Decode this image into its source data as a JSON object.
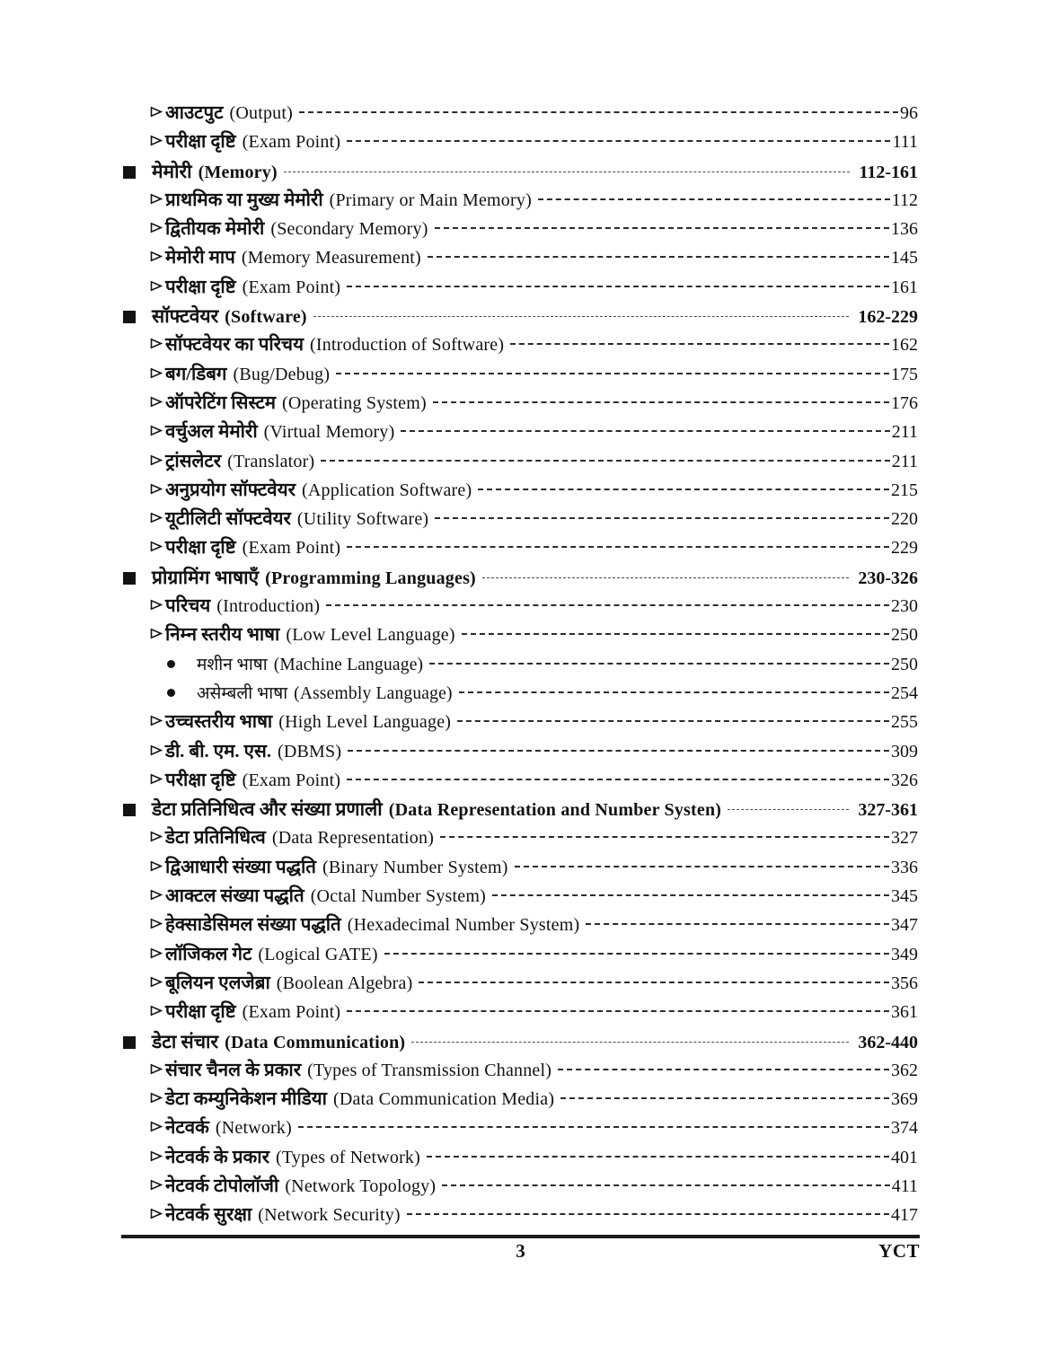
{
  "colors": {
    "background": "#ffffff",
    "text": "#111111"
  },
  "markers": {
    "section": "filled-square-icon",
    "sub": "arrowhead-icon",
    "bullet": "filled-circle-icon"
  },
  "footer": {
    "page_number": "3",
    "brand": "YCT"
  },
  "toc": {
    "entries": [
      {
        "level": "sub",
        "hindi": "आउटपुट",
        "english": "(Output)",
        "page": "96"
      },
      {
        "level": "sub",
        "hindi": "परीक्षा दृष्टि",
        "english": "(Exam Point)",
        "page": "111"
      },
      {
        "level": "section",
        "hindi": "मेमोरी",
        "english": "(Memory)",
        "page": "112-161"
      },
      {
        "level": "sub",
        "hindi": "प्राथमिक या मुख्य मेमोरी",
        "english": "(Primary or Main Memory)",
        "page": "112"
      },
      {
        "level": "sub",
        "hindi": "द्वितीयक मेमोरी",
        "english": "(Secondary Memory)",
        "page": "136"
      },
      {
        "level": "sub",
        "hindi": "मेमोरी माप",
        "english": "(Memory Measurement)",
        "page": "145"
      },
      {
        "level": "sub",
        "hindi": "परीक्षा दृष्टि",
        "english": "(Exam Point)",
        "page": "161"
      },
      {
        "level": "section",
        "hindi": "सॉफ्टवेयर",
        "english": "(Software)",
        "page": "162-229"
      },
      {
        "level": "sub",
        "hindi": "सॉफ्टवेयर का परिचय",
        "english": "(Introduction of Software)",
        "page": "162"
      },
      {
        "level": "sub",
        "hindi": "बग/डिबग",
        "english": "(Bug/Debug)",
        "page": "175"
      },
      {
        "level": "sub",
        "hindi": "ऑपरेटिंग सिस्टम",
        "english": "(Operating System)",
        "page": "176"
      },
      {
        "level": "sub",
        "hindi": "वर्चुअल मेमोरी",
        "english": "(Virtual Memory)",
        "page": "211"
      },
      {
        "level": "sub",
        "hindi": "ट्रांसलेटर",
        "english": "(Translator)",
        "page": "211"
      },
      {
        "level": "sub",
        "hindi": "अनुप्रयोग सॉफ्टवेयर",
        "english": "(Application Software)",
        "page": "215"
      },
      {
        "level": "sub",
        "hindi": "यूटीलिटी सॉफ्टवेयर",
        "english": "(Utility Software)",
        "page": "220"
      },
      {
        "level": "sub",
        "hindi": "परीक्षा दृष्टि",
        "english": "(Exam Point)",
        "page": "229"
      },
      {
        "level": "section",
        "hindi": "प्रोग्रामिंग भाषाएँ",
        "english": "(Programming Languages)",
        "page": "230-326"
      },
      {
        "level": "sub",
        "hindi": "परिचय",
        "english": "(Introduction)",
        "page": "230"
      },
      {
        "level": "sub",
        "hindi": "निम्न स्तरीय भाषा",
        "english": "(Low Level Language)",
        "page": "250"
      },
      {
        "level": "bullet",
        "hindi": "मशीन भाषा",
        "english": "(Machine Language)",
        "page": "250"
      },
      {
        "level": "bullet",
        "hindi": "असेम्बली भाषा",
        "english": "(Assembly Language)",
        "page": "254"
      },
      {
        "level": "sub",
        "hindi": "उच्चस्तरीय भाषा",
        "english": "(High Level Language)",
        "page": "255"
      },
      {
        "level": "sub",
        "hindi": "डी. बी. एम. एस.",
        "english": "(DBMS)",
        "page": "309"
      },
      {
        "level": "sub",
        "hindi": "परीक्षा दृष्टि",
        "english": "(Exam Point)",
        "page": "326"
      },
      {
        "level": "section",
        "hindi": "डेटा प्रतिनिधित्व और संख्या प्रणाली",
        "english": "(Data Representation and Number Systen)",
        "page": "327-361"
      },
      {
        "level": "sub",
        "hindi": "डेटा प्रतिनिधित्व",
        "english": "(Data Representation)",
        "page": "327"
      },
      {
        "level": "sub",
        "hindi": "द्विआधारी संख्या पद्धति",
        "english": "(Binary Number System)",
        "page": "336"
      },
      {
        "level": "sub",
        "hindi": "आक्टल संख्या पद्धति",
        "english": "(Octal Number System)",
        "page": "345"
      },
      {
        "level": "sub",
        "hindi": "हेक्साडेसिमल संख्या पद्धति",
        "english": "(Hexadecimal Number System)",
        "page": "347"
      },
      {
        "level": "sub",
        "hindi": "लॉजिकल गेट",
        "english": "(Logical GATE)",
        "page": "349"
      },
      {
        "level": "sub",
        "hindi": "बूलियन एलजेब्रा",
        "english": "(Boolean Algebra)",
        "page": "356"
      },
      {
        "level": "sub",
        "hindi": "परीक्षा दृष्टि",
        "english": "(Exam Point)",
        "page": "361"
      },
      {
        "level": "section",
        "hindi": "डेटा संचार",
        "english": "(Data Communication)",
        "page": "362-440"
      },
      {
        "level": "sub",
        "hindi": "संचार चैनल के प्रकार",
        "english": "(Types of Transmission Channel)",
        "page": "362"
      },
      {
        "level": "sub",
        "hindi": "डेटा कम्युनिकेशन मीडिया",
        "english": "(Data Communication Media)",
        "page": "369"
      },
      {
        "level": "sub",
        "hindi": "नेटवर्क",
        "english": "(Network)",
        "page": "374"
      },
      {
        "level": "sub",
        "hindi": "नेटवर्क के प्रकार",
        "english": "(Types of Network)",
        "page": "401"
      },
      {
        "level": "sub",
        "hindi": "नेटवर्क टोपोलॉजी",
        "english": "(Network Topology)",
        "page": "411"
      },
      {
        "level": "sub",
        "hindi": "नेटवर्क सुरक्षा",
        "english": "(Network Security)",
        "page": "417"
      }
    ]
  }
}
